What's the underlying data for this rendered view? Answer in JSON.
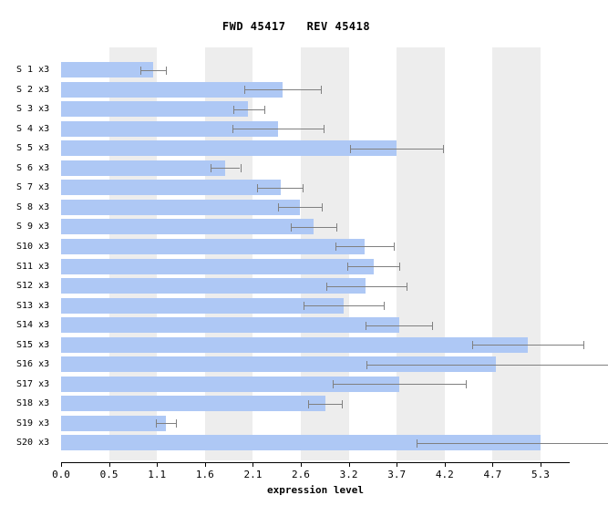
{
  "title": "FWD 45417   REV 45418",
  "chart_data": {
    "type": "bar",
    "orientation": "horizontal",
    "title": "FWD 45417   REV 45418",
    "xlabel": "expression level",
    "ylabel": "",
    "xlim": [
      0,
      5.6
    ],
    "legend": "none",
    "grid": "alternating light-gray vertical bands between tick pairs 1-2, 3-4, 5-6, 7-8, 9-10",
    "x_ticks": [
      {
        "label": "0.0",
        "value": 0.0
      },
      {
        "label": "0.5",
        "value": 0.5273
      },
      {
        "label": "1.1",
        "value": 1.0546
      },
      {
        "label": "1.6",
        "value": 1.5819
      },
      {
        "label": "2.1",
        "value": 2.1092
      },
      {
        "label": "2.6",
        "value": 2.6365
      },
      {
        "label": "3.2",
        "value": 3.1638
      },
      {
        "label": "3.7",
        "value": 3.6911
      },
      {
        "label": "4.2",
        "value": 4.2184
      },
      {
        "label": "4.7",
        "value": 4.7457
      },
      {
        "label": "5.3",
        "value": 5.273
      }
    ],
    "rows": [
      {
        "label": "S 1 x3",
        "value": 1.01,
        "err_low": 0.87,
        "err_high": 1.15,
        "err_clipped": false
      },
      {
        "label": "S 2 x3",
        "value": 2.44,
        "err_low": 2.02,
        "err_high": 2.86,
        "err_clipped": false
      },
      {
        "label": "S 3 x3",
        "value": 2.06,
        "err_low": 1.89,
        "err_high": 2.24,
        "err_clipped": false
      },
      {
        "label": "S 4 x3",
        "value": 2.39,
        "err_low": 1.88,
        "err_high": 2.89,
        "err_clipped": false
      },
      {
        "label": "S 5 x3",
        "value": 3.69,
        "err_low": 3.18,
        "err_high": 4.2,
        "err_clipped": false
      },
      {
        "label": "S 6 x3",
        "value": 1.8,
        "err_low": 1.64,
        "err_high": 1.97,
        "err_clipped": false
      },
      {
        "label": "S 7 x3",
        "value": 2.42,
        "err_low": 2.16,
        "err_high": 2.66,
        "err_clipped": false
      },
      {
        "label": "S 8 x3",
        "value": 2.63,
        "err_low": 2.39,
        "err_high": 2.87,
        "err_clipped": false
      },
      {
        "label": "S 9 x3",
        "value": 2.78,
        "err_low": 2.53,
        "err_high": 3.03,
        "err_clipped": false
      },
      {
        "label": "S10 x3",
        "value": 3.34,
        "err_low": 3.02,
        "err_high": 3.66,
        "err_clipped": false
      },
      {
        "label": "S11 x3",
        "value": 3.44,
        "err_low": 3.15,
        "err_high": 3.72,
        "err_clipped": false
      },
      {
        "label": "S12 x3",
        "value": 3.35,
        "err_low": 2.92,
        "err_high": 3.8,
        "err_clipped": false
      },
      {
        "label": "S13 x3",
        "value": 3.11,
        "err_low": 2.67,
        "err_high": 3.55,
        "err_clipped": false
      },
      {
        "label": "S14 x3",
        "value": 3.72,
        "err_low": 3.35,
        "err_high": 4.08,
        "err_clipped": false
      },
      {
        "label": "S15 x3",
        "value": 5.13,
        "err_low": 4.52,
        "err_high": 5.74,
        "err_clipped": false
      },
      {
        "label": "S16 x3",
        "value": 4.78,
        "err_low": 3.36,
        "err_high": 6.02,
        "err_clipped": true
      },
      {
        "label": "S17 x3",
        "value": 3.72,
        "err_low": 2.99,
        "err_high": 4.45,
        "err_clipped": false
      },
      {
        "label": "S18 x3",
        "value": 2.91,
        "err_low": 2.72,
        "err_high": 3.09,
        "err_clipped": false
      },
      {
        "label": "S19 x3",
        "value": 1.15,
        "err_low": 1.04,
        "err_high": 1.26,
        "err_clipped": false
      },
      {
        "label": "S20 x3",
        "value": 5.27,
        "err_low": 3.91,
        "err_high": 6.02,
        "err_clipped": true
      }
    ],
    "colors": {
      "bar": "#aec8f5",
      "stripe": "#ededed",
      "error": "#808080",
      "axis": "#000000",
      "text": "#000000",
      "background": "#ffffff"
    }
  }
}
